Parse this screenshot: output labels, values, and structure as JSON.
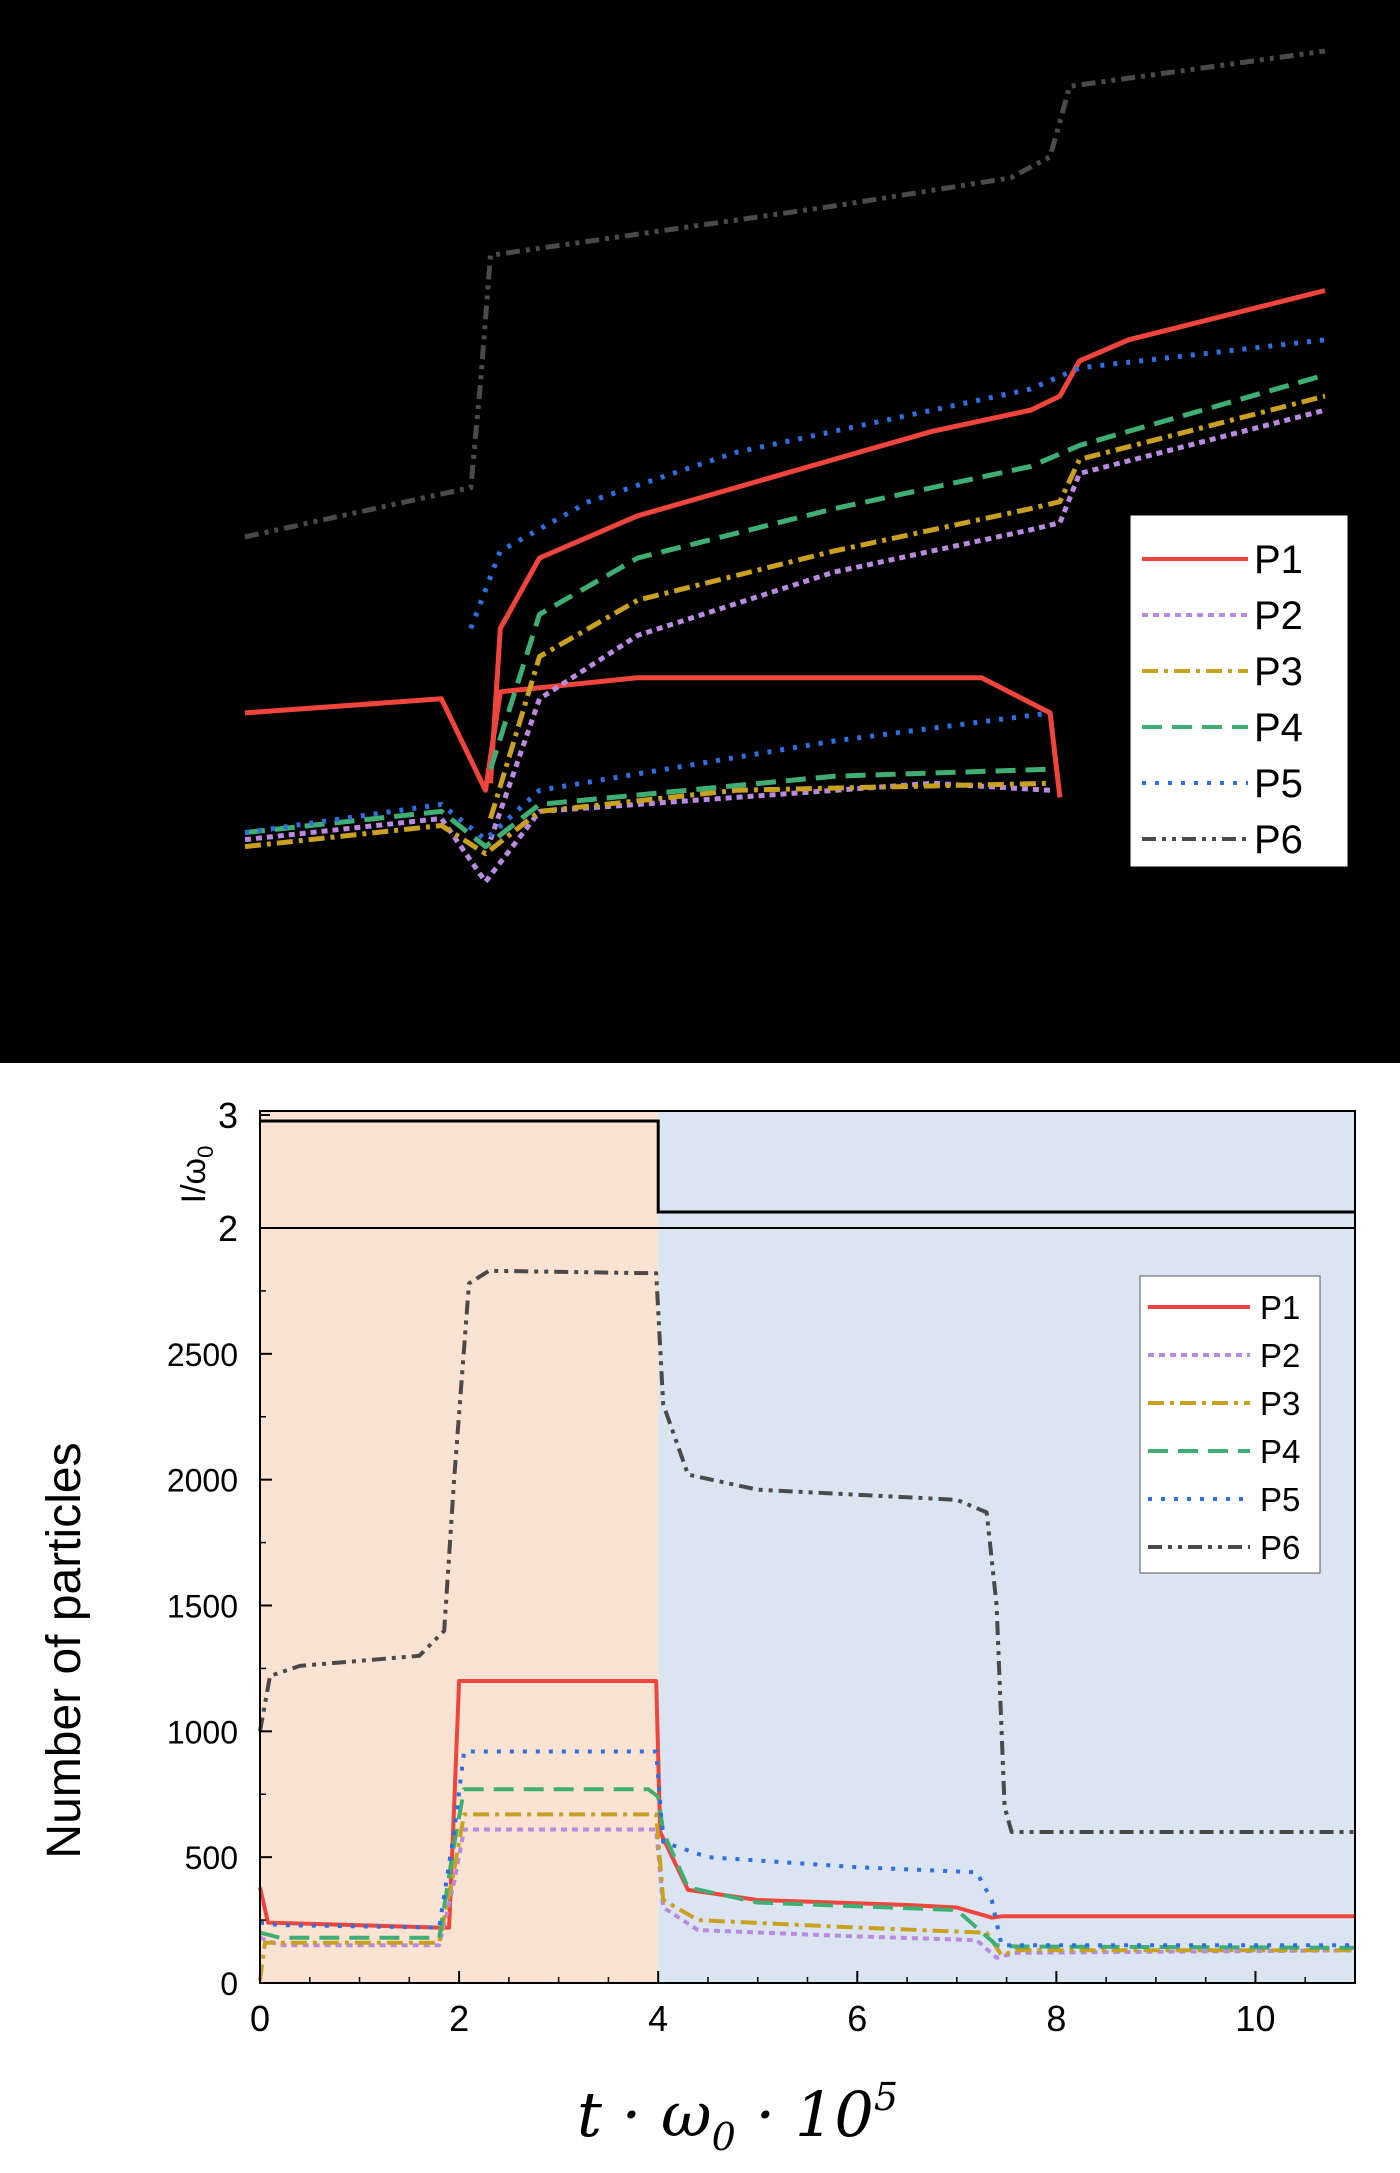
{
  "colors": {
    "P1": "#f0453d",
    "P2": "#b98ae0",
    "P3": "#c9a020",
    "P4": "#3fae73",
    "P5": "#2f6fe0",
    "P6": "#4a4a4a",
    "region_before": "#fbe3d4",
    "region_after": "#dbe4f1"
  },
  "chart_data": [
    {
      "type": "line",
      "panel": "top",
      "description_of_axes": "no axes, ticks or labels printed",
      "x": [
        0,
        1,
        2,
        3,
        4,
        5,
        6,
        7,
        8,
        9,
        10,
        11
      ],
      "legend": {
        "placement": "bottom-right",
        "entries": [
          "P1",
          "P2",
          "P3",
          "P4",
          "P5",
          "P6"
        ]
      },
      "series": [
        {
          "name": "P1",
          "style": "solid",
          "lines": [
            [
              [
                0,
                0.28
              ],
              [
                2,
                0.3
              ],
              [
                2.45,
                0.17
              ],
              [
                2.6,
                0.31
              ],
              [
                4,
                0.33
              ],
              [
                7.5,
                0.33
              ],
              [
                8.2,
                0.28
              ],
              [
                8.3,
                0.16
              ]
            ],
            [
              [
                2.5,
                0.18
              ],
              [
                2.6,
                0.4
              ],
              [
                3,
                0.5
              ],
              [
                4,
                0.56
              ],
              [
                5,
                0.6
              ],
              [
                6,
                0.64
              ],
              [
                7,
                0.68
              ],
              [
                8,
                0.71
              ],
              [
                8.3,
                0.73
              ],
              [
                8.5,
                0.78
              ],
              [
                9,
                0.81
              ],
              [
                11,
                0.88
              ]
            ]
          ]
        },
        {
          "name": "P2",
          "style": "dotted-short",
          "lines": [
            [
              [
                0,
                0.1
              ],
              [
                2,
                0.13
              ],
              [
                2.45,
                0.04
              ],
              [
                3,
                0.14
              ],
              [
                5,
                0.16
              ],
              [
                7,
                0.18
              ],
              [
                8.2,
                0.17
              ]
            ],
            [
              [
                2.5,
                0.1
              ],
              [
                3,
                0.3
              ],
              [
                4,
                0.39
              ],
              [
                6,
                0.48
              ],
              [
                8,
                0.54
              ],
              [
                8.3,
                0.55
              ],
              [
                8.5,
                0.62
              ],
              [
                11,
                0.71
              ]
            ]
          ]
        },
        {
          "name": "P3",
          "style": "dash-dot",
          "lines": [
            [
              [
                0,
                0.09
              ],
              [
                2,
                0.12
              ],
              [
                2.45,
                0.08
              ],
              [
                3,
                0.14
              ],
              [
                5,
                0.17
              ],
              [
                8.2,
                0.18
              ]
            ],
            [
              [
                2.5,
                0.13
              ],
              [
                3,
                0.36
              ],
              [
                4,
                0.44
              ],
              [
                6,
                0.51
              ],
              [
                8,
                0.57
              ],
              [
                8.3,
                0.58
              ],
              [
                8.5,
                0.64
              ],
              [
                11,
                0.73
              ]
            ]
          ]
        },
        {
          "name": "P4",
          "style": "dashed",
          "lines": [
            [
              [
                0,
                0.11
              ],
              [
                2,
                0.14
              ],
              [
                2.45,
                0.09
              ],
              [
                3,
                0.15
              ],
              [
                6,
                0.19
              ],
              [
                8.2,
                0.2
              ]
            ],
            [
              [
                2.5,
                0.2
              ],
              [
                3,
                0.42
              ],
              [
                4,
                0.5
              ],
              [
                6,
                0.57
              ],
              [
                8,
                0.63
              ],
              [
                8.5,
                0.66
              ],
              [
                11,
                0.76
              ]
            ]
          ]
        },
        {
          "name": "P5",
          "style": "dotted",
          "lines": [
            [
              [
                0,
                0.11
              ],
              [
                2,
                0.15
              ],
              [
                2.45,
                0.1
              ],
              [
                3,
                0.17
              ],
              [
                6,
                0.24
              ],
              [
                8.2,
                0.28
              ]
            ],
            [
              [
                2.3,
                0.4
              ],
              [
                2.6,
                0.51
              ],
              [
                3.5,
                0.58
              ],
              [
                5,
                0.65
              ],
              [
                7,
                0.71
              ],
              [
                8,
                0.74
              ],
              [
                8.5,
                0.77
              ],
              [
                11,
                0.81
              ]
            ]
          ]
        },
        {
          "name": "P6",
          "style": "dash-dot-dot",
          "lines": [
            [
              [
                0,
                0.53
              ],
              [
                2.3,
                0.6
              ],
              [
                2.4,
                0.75
              ],
              [
                2.5,
                0.93
              ],
              [
                4,
                0.96
              ],
              [
                6,
                1.0
              ],
              [
                7.8,
                1.04
              ],
              [
                8.2,
                1.07
              ],
              [
                8.4,
                1.17
              ],
              [
                11,
                1.22
              ]
            ]
          ]
        }
      ]
    },
    {
      "type": "line",
      "panel": "bottom-upper",
      "ylabel": "I/ω",
      "ylabel_sub": "0",
      "yticks": [
        3,
        2
      ],
      "ylim": [
        2,
        3
      ],
      "x": [
        0,
        4,
        4,
        11
      ],
      "values": [
        3,
        3,
        2.15,
        2.15
      ]
    },
    {
      "type": "line",
      "panel": "bottom-main",
      "xlabel": "t · ω",
      "xlabel_sub": "0",
      "xlabel_tail": " · 10",
      "xlabel_sup": "5",
      "ylabel": "Number of particles",
      "xlim": [
        0,
        11
      ],
      "ylim": [
        0,
        3000
      ],
      "xticks": [
        "0",
        "2",
        "4",
        "6",
        "8",
        "10"
      ],
      "xtick_values": [
        0,
        2,
        4,
        6,
        8,
        10
      ],
      "yticks": [
        "0",
        "500",
        "1000",
        "1500",
        "2000",
        "2500"
      ],
      "ytick_values": [
        0,
        500,
        1000,
        1500,
        2000,
        2500
      ],
      "legend": {
        "placement": "top-right",
        "entries": [
          "P1",
          "P2",
          "P3",
          "P4",
          "P5",
          "P6"
        ]
      },
      "regions": [
        {
          "from": 0,
          "to": 4
        },
        {
          "from": 4,
          "to": 11
        }
      ],
      "series": [
        {
          "name": "P1",
          "style": "solid",
          "points": [
            [
              0,
              380
            ],
            [
              0.08,
              240
            ],
            [
              1.8,
              220
            ],
            [
              1.9,
              220
            ],
            [
              1.95,
              700
            ],
            [
              2,
              1200
            ],
            [
              3.98,
              1200
            ],
            [
              4.02,
              600
            ],
            [
              4.3,
              370
            ],
            [
              5,
              330
            ],
            [
              6.5,
              310
            ],
            [
              7,
              300
            ],
            [
              7.35,
              260
            ],
            [
              7.45,
              265
            ],
            [
              11,
              265
            ]
          ]
        },
        {
          "name": "P2",
          "style": "dotted-short",
          "points": [
            [
              0,
              180
            ],
            [
              0.2,
              150
            ],
            [
              1.8,
              150
            ],
            [
              1.95,
              400
            ],
            [
              2.05,
              610
            ],
            [
              3.98,
              610
            ],
            [
              4.05,
              300
            ],
            [
              4.4,
              210
            ],
            [
              6,
              185
            ],
            [
              7.2,
              170
            ],
            [
              7.4,
              100
            ],
            [
              7.6,
              120
            ],
            [
              11,
              130
            ]
          ]
        },
        {
          "name": "P3",
          "style": "dash-dot",
          "points": [
            [
              0,
              10
            ],
            [
              0.05,
              160
            ],
            [
              1.8,
              160
            ],
            [
              1.95,
              450
            ],
            [
              2.05,
              670
            ],
            [
              3.98,
              670
            ],
            [
              4.05,
              330
            ],
            [
              4.4,
              250
            ],
            [
              6,
              220
            ],
            [
              7.3,
              200
            ],
            [
              7.45,
              110
            ],
            [
              7.6,
              130
            ],
            [
              11,
              130
            ]
          ]
        },
        {
          "name": "P4",
          "style": "dashed",
          "points": [
            [
              0,
              200
            ],
            [
              0.2,
              180
            ],
            [
              1.8,
              180
            ],
            [
              1.95,
              550
            ],
            [
              2.05,
              770
            ],
            [
              3.9,
              770
            ],
            [
              4.0,
              740
            ],
            [
              4.05,
              600
            ],
            [
              4.3,
              380
            ],
            [
              5,
              320
            ],
            [
              7,
              290
            ],
            [
              7.4,
              150
            ],
            [
              7.6,
              145
            ],
            [
              11,
              140
            ]
          ]
        },
        {
          "name": "P5",
          "style": "dotted",
          "points": [
            [
              0,
              240
            ],
            [
              0.2,
              230
            ],
            [
              1.8,
              220
            ],
            [
              1.95,
              600
            ],
            [
              2.05,
              920
            ],
            [
              3.98,
              920
            ],
            [
              4.05,
              560
            ],
            [
              4.5,
              500
            ],
            [
              6,
              460
            ],
            [
              7.2,
              440
            ],
            [
              7.35,
              330
            ],
            [
              7.45,
              150
            ],
            [
              11,
              150
            ]
          ]
        },
        {
          "name": "P6",
          "style": "dash-dot-dot",
          "points": [
            [
              0,
              1000
            ],
            [
              0.1,
              1220
            ],
            [
              0.4,
              1260
            ],
            [
              1.6,
              1300
            ],
            [
              1.85,
              1400
            ],
            [
              1.95,
              2000
            ],
            [
              2.1,
              2780
            ],
            [
              2.3,
              2830
            ],
            [
              3.98,
              2820
            ],
            [
              4.05,
              2300
            ],
            [
              4.3,
              2020
            ],
            [
              5,
              1960
            ],
            [
              7,
              1920
            ],
            [
              7.3,
              1870
            ],
            [
              7.4,
              1500
            ],
            [
              7.48,
              700
            ],
            [
              7.55,
              600
            ],
            [
              11,
              600
            ]
          ]
        }
      ]
    }
  ]
}
